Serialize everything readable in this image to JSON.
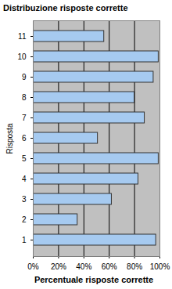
{
  "chart_data": {
    "type": "bar",
    "orientation": "horizontal",
    "title": "Distribuzione risposte corrette",
    "x_label": "Percentuale risposte corrette",
    "y_label": "Risposta",
    "categories": [
      "1",
      "2",
      "3",
      "4",
      "5",
      "6",
      "7",
      "8",
      "9",
      "10",
      "11"
    ],
    "values": [
      97,
      35,
      62,
      83,
      99,
      51,
      88,
      80,
      95,
      99,
      56
    ],
    "color": "#a6caf0",
    "xlim": [
      0,
      100
    ],
    "xticks": [
      {
        "value": 0,
        "label": "0%"
      },
      {
        "value": 20,
        "label": "20%"
      },
      {
        "value": 40,
        "label": "40%"
      },
      {
        "value": 60,
        "label": "60%"
      },
      {
        "value": 80,
        "label": "80%"
      },
      {
        "value": 100,
        "label": "100%"
      }
    ],
    "grid": true
  }
}
